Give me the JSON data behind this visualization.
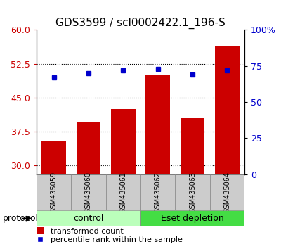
{
  "title": "GDS3599 / scl0002422.1_196-S",
  "categories": [
    "GSM435059",
    "GSM435060",
    "GSM435061",
    "GSM435062",
    "GSM435063",
    "GSM435064"
  ],
  "bar_values": [
    35.5,
    39.5,
    42.5,
    50.0,
    40.5,
    56.5
  ],
  "percentile_values": [
    67,
    70,
    72,
    73,
    69,
    72
  ],
  "left_ylim": [
    28,
    60
  ],
  "left_yticks": [
    30,
    37.5,
    45,
    52.5,
    60
  ],
  "right_ylim": [
    0,
    100
  ],
  "right_yticks": [
    0,
    25,
    50,
    75,
    100
  ],
  "bar_color": "#cc0000",
  "marker_color": "#0000cc",
  "groups": [
    {
      "label": "control",
      "indices": [
        0,
        1,
        2
      ],
      "color": "#bbffbb"
    },
    {
      "label": "Eset depletion",
      "indices": [
        3,
        4,
        5
      ],
      "color": "#44dd44"
    }
  ],
  "group_label": "protocol",
  "legend_bar_label": "transformed count",
  "legend_marker_label": "percentile rank within the sample",
  "tick_label_color_left": "#cc0000",
  "tick_label_color_right": "#0000cc",
  "bar_bottom": 28,
  "grid_color": "black",
  "grid_linestyle": "dotted"
}
